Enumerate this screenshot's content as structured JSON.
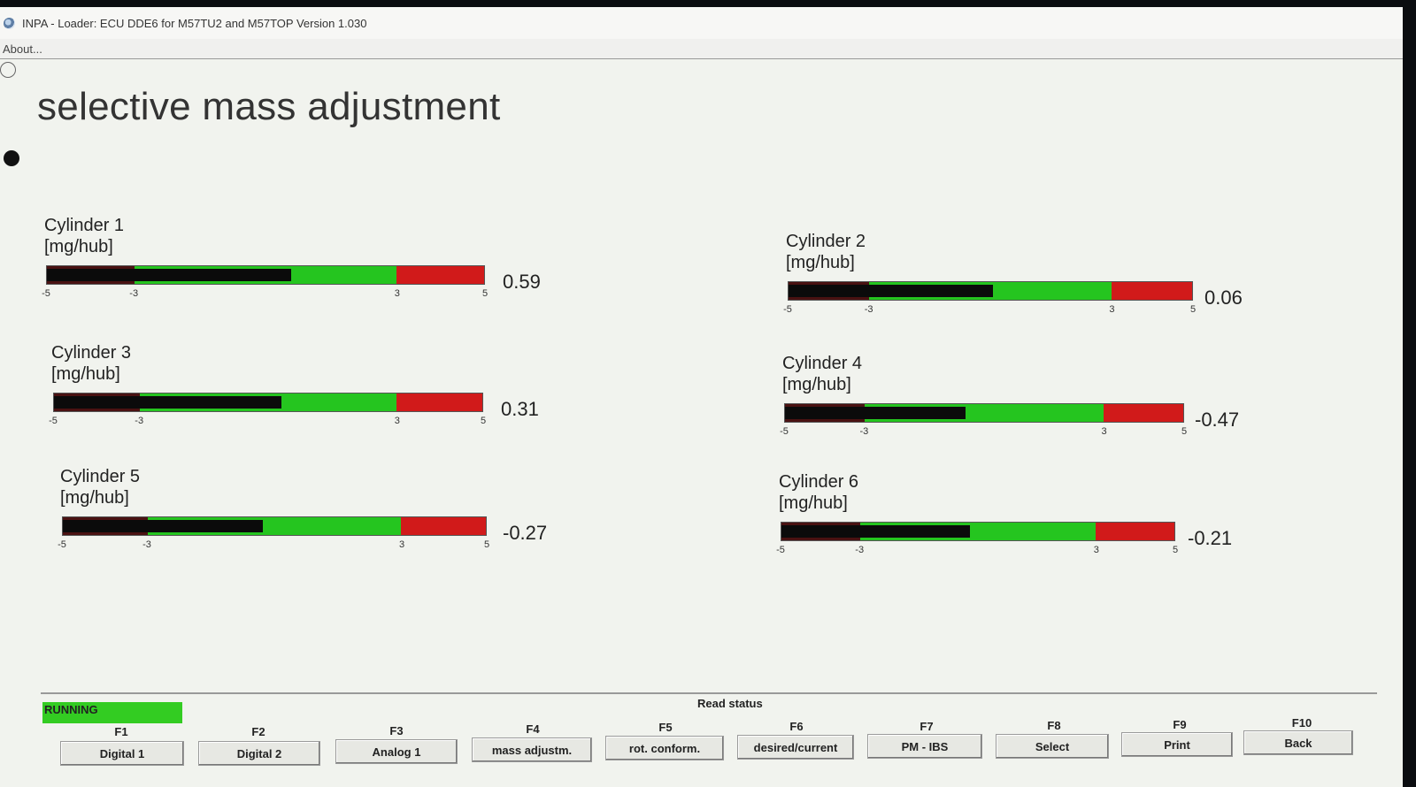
{
  "window": {
    "title": "INPA - Loader:  ECU DDE6 for M57TU2 and M57TOP Version 1.030"
  },
  "menu": {
    "about": "About..."
  },
  "page": {
    "title": "selective mass adjustment"
  },
  "scale": {
    "min": -5,
    "max": 5,
    "ticks": [
      "-5",
      "-3",
      "3",
      "5"
    ]
  },
  "colors": {
    "dark_zone": "#4a1212",
    "green_zone": "#25c51f",
    "red_zone": "#d11a1a",
    "fill": "#0b0b0b"
  },
  "cylinders": [
    {
      "name": "Cylinder 1",
      "unit": "[mg/hub]",
      "value": 0.59,
      "value_text": "0.59"
    },
    {
      "name": "Cylinder 2",
      "unit": "[mg/hub]",
      "value": 0.06,
      "value_text": "0.06"
    },
    {
      "name": "Cylinder 3",
      "unit": "[mg/hub]",
      "value": 0.31,
      "value_text": "0.31"
    },
    {
      "name": "Cylinder 4",
      "unit": "[mg/hub]",
      "value": -0.47,
      "value_text": "-0.47"
    },
    {
      "name": "Cylinder 5",
      "unit": "[mg/hub]",
      "value": -0.27,
      "value_text": "-0.27"
    },
    {
      "name": "Cylinder 6",
      "unit": "[mg/hub]",
      "value": -0.21,
      "value_text": "-0.21"
    }
  ],
  "status": {
    "running": "RUNNING",
    "read_status": "Read status"
  },
  "function_keys": [
    {
      "key": "F1",
      "label": "Digital 1"
    },
    {
      "key": "F2",
      "label": "Digital 2"
    },
    {
      "key": "F3",
      "label": "Analog 1"
    },
    {
      "key": "F4",
      "label": "mass adjustm."
    },
    {
      "key": "F5",
      "label": "rot. conform."
    },
    {
      "key": "F6",
      "label": "desired/current"
    },
    {
      "key": "F7",
      "label": "PM - IBS"
    },
    {
      "key": "F8",
      "label": "Select"
    },
    {
      "key": "F9",
      "label": "Print"
    },
    {
      "key": "F10",
      "label": "Back"
    }
  ]
}
